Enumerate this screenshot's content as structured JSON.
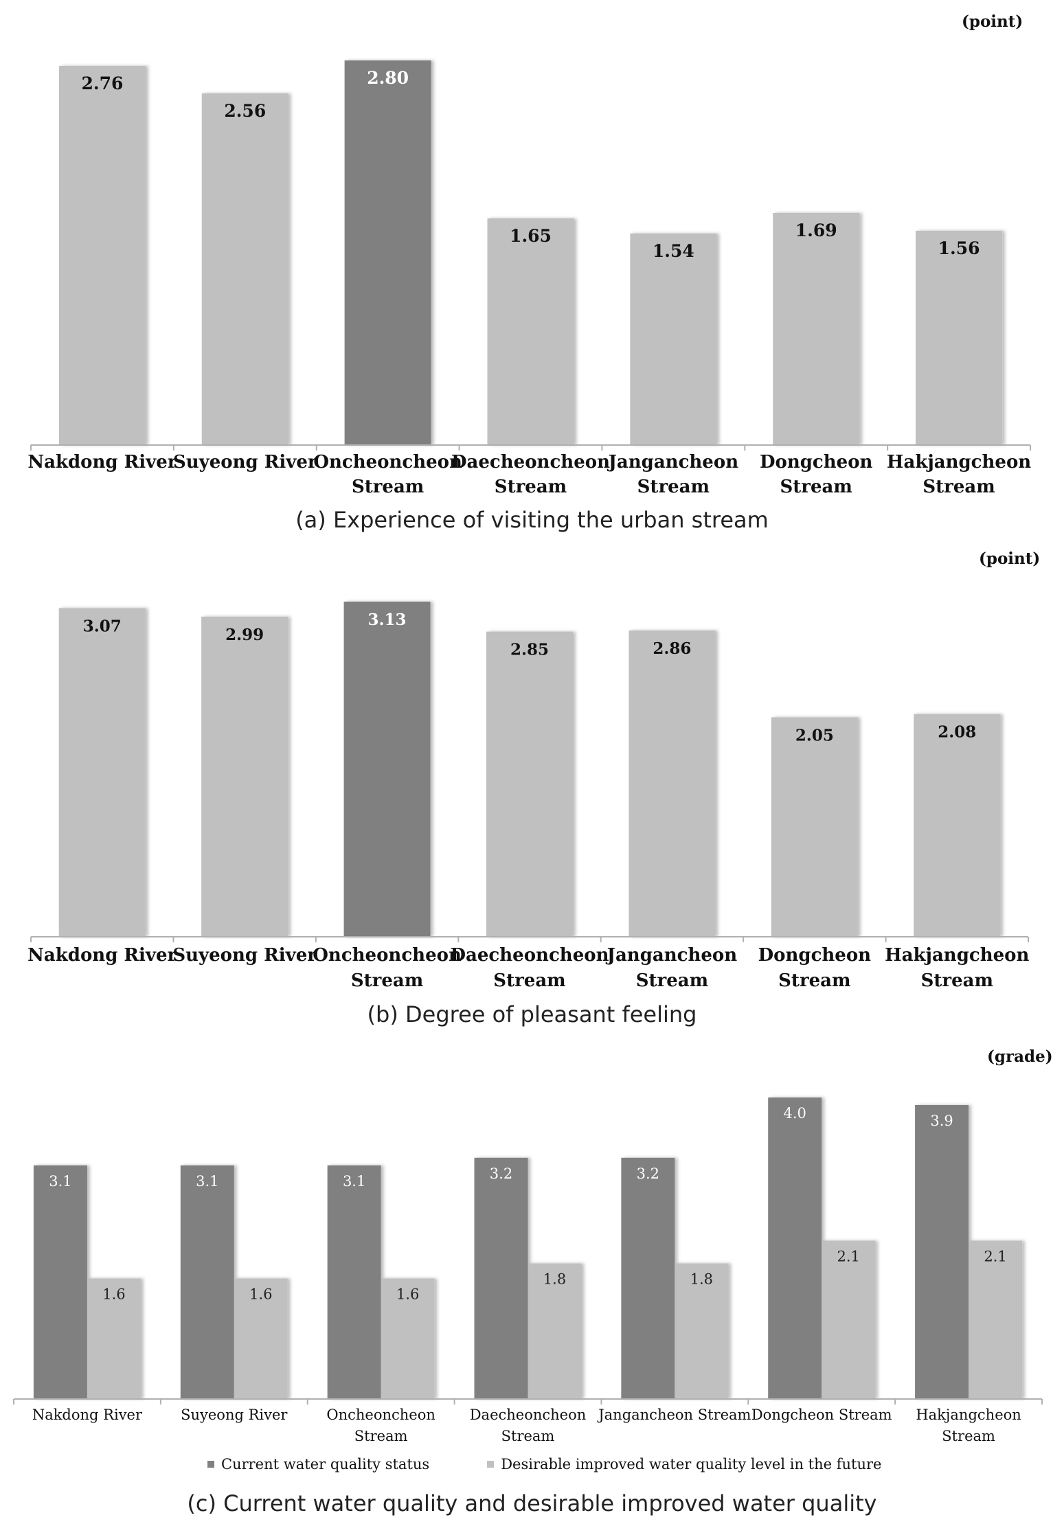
{
  "chart_data": [
    {
      "type": "bar",
      "unit": "(point)",
      "caption": "(a) Experience of visiting the urban stream",
      "categories": [
        [
          "Nakdong River"
        ],
        [
          "Suyeong River"
        ],
        [
          "Oncheoncheon",
          "Stream"
        ],
        [
          "Daecheoncheon",
          "Stream"
        ],
        [
          "Jangancheon",
          "Stream"
        ],
        [
          "Dongcheon",
          "Stream"
        ],
        [
          "Hakjangcheon",
          "Stream"
        ]
      ],
      "values": [
        2.76,
        2.56,
        2.8,
        1.65,
        1.54,
        1.69,
        1.56
      ],
      "labels": [
        "2.76",
        "2.56",
        "2.80",
        "1.65",
        "1.54",
        "1.69",
        "1.56"
      ],
      "highlight_index": 2,
      "ylim": [
        0,
        2.8
      ]
    },
    {
      "type": "bar",
      "unit": "(point)",
      "caption": "(b) Degree of pleasant feeling",
      "categories": [
        [
          "Nakdong River"
        ],
        [
          "Suyeong River"
        ],
        [
          "Oncheoncheon",
          "Stream"
        ],
        [
          "Daecheoncheon",
          "Stream"
        ],
        [
          "Jangancheon",
          "Stream"
        ],
        [
          "Dongcheon",
          "Stream"
        ],
        [
          "Hakjangcheon",
          "Stream"
        ]
      ],
      "values": [
        3.07,
        2.99,
        3.13,
        2.85,
        2.86,
        2.05,
        2.08
      ],
      "labels": [
        "3.07",
        "2.99",
        "3.13",
        "2.85",
        "2.86",
        "2.05",
        "2.08"
      ],
      "highlight_index": 2,
      "ylim": [
        0,
        3.13
      ]
    },
    {
      "type": "bar",
      "unit": "(grade)",
      "caption": "(c) Current water quality and desirable improved water quality",
      "categories": [
        [
          "Nakdong River"
        ],
        [
          "Suyeong River"
        ],
        [
          "Oncheoncheon",
          "Stream"
        ],
        [
          "Daecheoncheon",
          "Stream"
        ],
        [
          "Jangancheon Stream"
        ],
        [
          "Dongcheon Stream"
        ],
        [
          "Hakjangcheon",
          "Stream"
        ]
      ],
      "series": [
        {
          "name": "Current water quality status",
          "values": [
            3.1,
            3.1,
            3.1,
            3.2,
            3.2,
            4.0,
            3.9
          ],
          "labels": [
            "3.1",
            "3.1",
            "3.1",
            "3.2",
            "3.2",
            "4.0",
            "3.9"
          ],
          "color": "#808080"
        },
        {
          "name": "Desirable improved water quality level in the future",
          "values": [
            1.6,
            1.6,
            1.6,
            1.8,
            1.8,
            2.1,
            2.1
          ],
          "labels": [
            "1.6",
            "1.6",
            "1.6",
            "1.8",
            "1.8",
            "2.1",
            "2.1"
          ],
          "color": "#c0c0c0"
        }
      ],
      "ylim": [
        0,
        4.0
      ]
    }
  ],
  "colors": {
    "bar_light": "#c0c0c0",
    "bar_dark": "#808080",
    "axis": "#b0b0b0"
  }
}
